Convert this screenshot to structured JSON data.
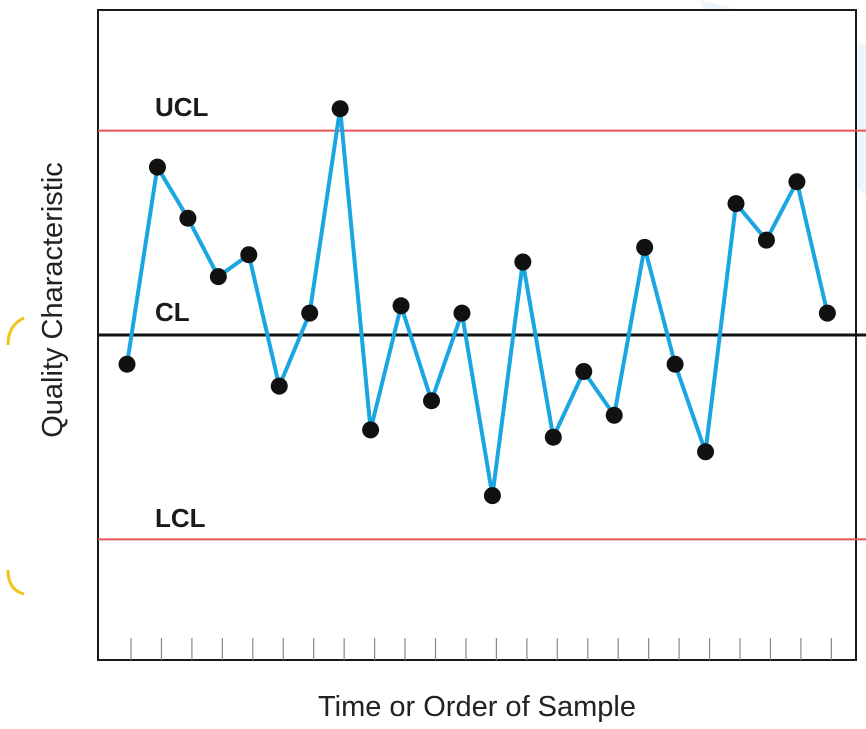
{
  "chart_data": {
    "type": "line",
    "title": "",
    "xlabel": "Time or Order of Sample",
    "ylabel": "Quality Characteristic",
    "ylim": [
      -4.5,
      5.5
    ],
    "grid": false,
    "series": [
      {
        "values": [
          -0.4,
          2.3,
          1.6,
          0.8,
          1.1,
          -0.7,
          0.3,
          3.1,
          -1.3,
          0.4,
          -0.9,
          0.3,
          -2.2,
          1.0,
          -1.4,
          -0.5,
          -1.1,
          1.2,
          -0.4,
          -1.6,
          1.8,
          1.3,
          2.1,
          0.3
        ]
      }
    ],
    "reference_lines": [
      {
        "label": "UCL",
        "value": 2.8
      },
      {
        "label": "CL",
        "value": 0
      },
      {
        "label": "LCL",
        "value": -2.8
      }
    ],
    "x_ticks": 24,
    "colors": {
      "series": "#1aa6e0",
      "points": "#111111",
      "limits": "#e8545c",
      "centerline": "#111111",
      "frame": "#1a1a1a"
    }
  }
}
